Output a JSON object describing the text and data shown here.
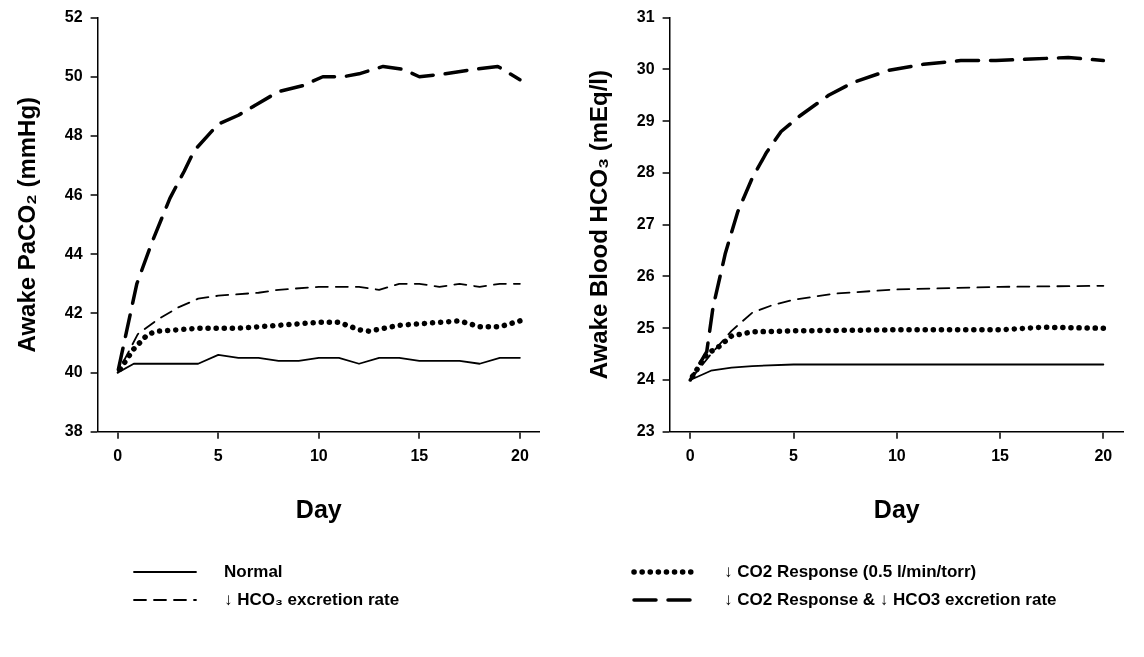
{
  "chart_data": [
    {
      "type": "line",
      "xlabel": "Day",
      "ylabel": "Awake PaCO₂ (mmHg)",
      "xlim": [
        -1,
        21
      ],
      "ylim": [
        38,
        52
      ],
      "xticks": [
        0,
        5,
        10,
        15,
        20
      ],
      "yticks": [
        38,
        40,
        42,
        44,
        46,
        48,
        50,
        52
      ],
      "grid": false,
      "legend": "bottom",
      "marker": "none",
      "series": [
        {
          "name": "Normal",
          "color": "#000000",
          "line_style": "solid",
          "x": [
            0,
            0.8,
            1,
            2,
            3,
            4,
            5,
            6,
            7,
            8,
            9,
            10,
            11,
            12,
            13,
            14,
            15,
            16,
            17,
            18,
            19,
            20
          ],
          "values": [
            40,
            40.3,
            40.3,
            40.3,
            40.3,
            40.3,
            40.6,
            40.5,
            40.5,
            40.4,
            40.4,
            40.5,
            40.5,
            40.3,
            40.5,
            40.5,
            40.4,
            40.4,
            40.4,
            40.3,
            40.5,
            40.5
          ]
        },
        {
          "name": "↓ HCO₃ excretion rate",
          "color": "#000000",
          "line_style": "dashed",
          "x": [
            0,
            1,
            2,
            3,
            4,
            5,
            7,
            8,
            10,
            12,
            13,
            14,
            15,
            16,
            17,
            18,
            19,
            20
          ],
          "values": [
            40,
            41.3,
            41.8,
            42.2,
            42.5,
            42.6,
            42.7,
            42.8,
            42.9,
            42.9,
            42.8,
            43.0,
            43.0,
            42.9,
            43.0,
            42.9,
            43.0,
            43.0
          ]
        },
        {
          "name": "↓ CO2 Response (0.5 l/min/torr)",
          "color": "#000000",
          "line_style": "dotted",
          "x": [
            0,
            0.8,
            1.5,
            2,
            4,
            6,
            8,
            10,
            11,
            12,
            12.5,
            14,
            16,
            17,
            18,
            19,
            20
          ],
          "values": [
            40,
            40.8,
            41.3,
            41.4,
            41.5,
            41.5,
            41.6,
            41.7,
            41.7,
            41.45,
            41.4,
            41.6,
            41.7,
            41.75,
            41.55,
            41.55,
            41.75
          ]
        },
        {
          "name": "↓ CO2 Response & ↓ HCO3 excretion rate",
          "color": "#000000",
          "line_style": "dashed",
          "x": [
            0,
            0.95,
            1.7,
            2.6,
            3.3,
            3.8,
            5,
            6,
            8,
            9.2,
            10.2,
            11.2,
            12,
            13.2,
            14.2,
            15,
            16.3,
            17.7,
            18.9,
            20
          ],
          "values": [
            40,
            43.0,
            44.4,
            45.9,
            46.8,
            47.5,
            48.4,
            48.7,
            49.5,
            49.7,
            50.0,
            50.0,
            50.1,
            50.35,
            50.25,
            50.0,
            50.1,
            50.25,
            50.35,
            49.9
          ]
        }
      ]
    },
    {
      "type": "line",
      "xlabel": "Day",
      "ylabel": "Awake Blood HCO₃ (mEq/l)",
      "xlim": [
        -1,
        21
      ],
      "ylim": [
        23,
        31
      ],
      "xticks": [
        0,
        5,
        10,
        15,
        20
      ],
      "yticks": [
        23,
        24,
        25,
        26,
        27,
        28,
        29,
        30,
        31
      ],
      "grid": false,
      "marker": "none",
      "series": [
        {
          "color": "#000000",
          "line_style": "solid",
          "x": [
            0,
            1,
            2,
            3,
            5,
            10,
            15,
            20
          ],
          "values": [
            24,
            24.18,
            24.24,
            24.27,
            24.3,
            24.3,
            24.3,
            24.3
          ]
        },
        {
          "color": "#000000",
          "line_style": "dashed",
          "x": [
            0,
            1,
            2,
            3,
            4,
            5,
            7,
            10,
            15,
            20
          ],
          "values": [
            24,
            24.5,
            24.95,
            25.3,
            25.45,
            25.55,
            25.67,
            25.75,
            25.8,
            25.82
          ]
        },
        {
          "color": "#000000",
          "line_style": "dotted",
          "x": [
            0,
            0.8,
            1.4,
            2,
            3,
            5,
            10,
            15,
            17,
            20
          ],
          "values": [
            24,
            24.5,
            24.65,
            24.85,
            24.93,
            24.95,
            24.97,
            24.97,
            25.02,
            25.0
          ]
        },
        {
          "color": "#000000",
          "line_style": "dashed",
          "x": [
            0,
            0.8,
            1.1,
            1.7,
            2.3,
            3.0,
            3.7,
            4.4,
            5.3,
            6.7,
            7.9,
            9.6,
            11.3,
            13.1,
            14.8,
            16.5,
            18.3,
            20
          ],
          "values": [
            24,
            24.55,
            25.4,
            26.45,
            27.25,
            27.9,
            28.4,
            28.8,
            29.1,
            29.5,
            29.75,
            29.98,
            30.1,
            30.17,
            30.17,
            30.2,
            30.23,
            30.17
          ]
        }
      ]
    }
  ]
}
